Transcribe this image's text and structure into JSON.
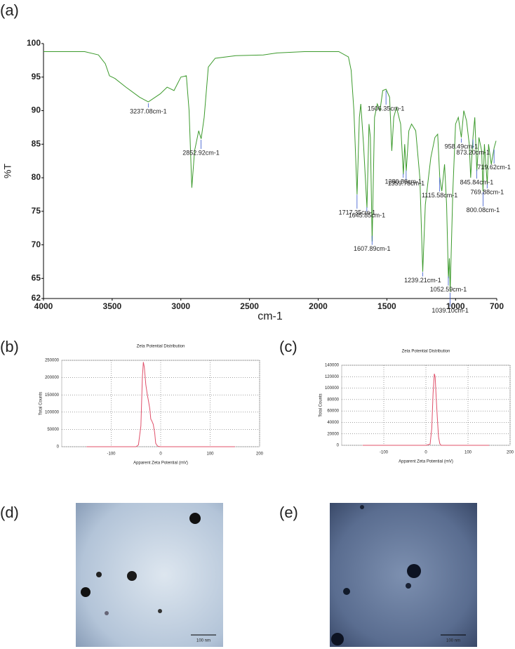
{
  "chart_data": [
    {
      "type": "line",
      "panel_label": "(a)",
      "xlabel": "cm-1",
      "ylabel": "%T",
      "color": "#3c9a2c",
      "xlim": [
        4000,
        700
      ],
      "ylim": [
        62,
        100
      ],
      "xticks": [
        4000,
        3500,
        3000,
        2500,
        2000,
        1500,
        1000,
        700
      ],
      "yticks": [
        62,
        65,
        70,
        75,
        80,
        85,
        90,
        95,
        100
      ],
      "grid": false,
      "x": [
        4000,
        3700,
        3600,
        3550,
        3520,
        3480,
        3400,
        3300,
        3237,
        3150,
        3100,
        3050,
        3000,
        2960,
        2940,
        2920,
        2900,
        2870,
        2852,
        2830,
        2800,
        2750,
        2600,
        2400,
        2300,
        2100,
        2000,
        1850,
        1780,
        1760,
        1740,
        1717,
        1700,
        1690,
        1670,
        1645,
        1630,
        1620,
        1607,
        1590,
        1570,
        1550,
        1530,
        1506,
        1480,
        1464,
        1450,
        1430,
        1400,
        1380,
        1370,
        1359,
        1340,
        1320,
        1290,
        1260,
        1239,
        1220,
        1180,
        1150,
        1130,
        1115,
        1100,
        1080,
        1065,
        1052,
        1045,
        1039,
        1020,
        1000,
        980,
        958,
        940,
        920,
        900,
        890,
        873,
        860,
        845,
        830,
        810,
        800,
        790,
        769,
        760,
        740,
        719,
        705
      ],
      "values": [
        98.8,
        98.8,
        98.3,
        97,
        95.2,
        94.8,
        93.5,
        92,
        91.3,
        92.5,
        93.5,
        93,
        95,
        95.2,
        90,
        78.5,
        84,
        87,
        85.8,
        89,
        96.5,
        97.8,
        98.2,
        98.3,
        98.6,
        98.8,
        98.8,
        98.8,
        98,
        96,
        90,
        77.5,
        89,
        91,
        85,
        75.5,
        88,
        86,
        70.5,
        89,
        91,
        90,
        93,
        93.2,
        92,
        84,
        89,
        90.5,
        88,
        80.5,
        85,
        81,
        87,
        88,
        87,
        80,
        66,
        76,
        83,
        86,
        86.5,
        80,
        78,
        82,
        76,
        65,
        68,
        63,
        78,
        88,
        89,
        86,
        90,
        88.5,
        85,
        80,
        86,
        89,
        81,
        86,
        84,
        78,
        85,
        79,
        85,
        82,
        84.5,
        85.5
      ],
      "annotations": [
        {
          "label": "3237.08cm-1",
          "x": 3237.08
        },
        {
          "label": "2852.92cm-1",
          "x": 2852.92
        },
        {
          "label": "1506.35cm-1",
          "x": 1506.35
        },
        {
          "label": "1380.88cm-1",
          "x": 1380.88
        },
        {
          "label": "1359.78cm-1",
          "x": 1359.78
        },
        {
          "label": "1717.35cm-1",
          "x": 1717.35
        },
        {
          "label": "1645.85cm-1",
          "x": 1645.85
        },
        {
          "label": "1607.89cm-1",
          "x": 1607.89
        },
        {
          "label": "1115.58cm-1",
          "x": 1115.58
        },
        {
          "label": "1239.21cm-1",
          "x": 1239.21
        },
        {
          "label": "1052.59cm-1",
          "x": 1052.59
        },
        {
          "label": "1039.10cm-1",
          "x": 1039.1
        },
        {
          "label": "958.49cm-1",
          "x": 958.49
        },
        {
          "label": "845.84cm-1",
          "x": 845.84
        },
        {
          "label": "719.62cm-1",
          "x": 719.62
        },
        {
          "label": "769.88cm-1",
          "x": 769.88
        },
        {
          "label": "873.20cm-1",
          "x": 873.2
        },
        {
          "label": "800.08cm-1",
          "x": 800.08
        }
      ]
    },
    {
      "type": "line",
      "panel_label": "(b)",
      "title": "Zeta Potential Distribution",
      "xlabel": "Apparent Zeta Potential (mV)",
      "ylabel": "Total Counts",
      "color": "#e0506a",
      "xlim": [
        -200,
        200
      ],
      "ylim": [
        0,
        250000
      ],
      "xticks": [
        -100,
        0,
        100,
        200
      ],
      "yticks": [
        0,
        50000,
        100000,
        150000,
        200000,
        250000
      ],
      "grid": true,
      "x": [
        -150,
        -50,
        -45,
        -40,
        -37,
        -35,
        -33,
        -30,
        -27,
        -25,
        -22,
        -20,
        -18,
        -15,
        -12,
        -10,
        -7,
        -5,
        0,
        150
      ],
      "values": [
        0,
        0,
        5000,
        60000,
        200000,
        245000,
        230000,
        180000,
        150000,
        135000,
        110000,
        80000,
        75000,
        65000,
        40000,
        10000,
        3000,
        1000,
        0,
        0
      ]
    },
    {
      "type": "line",
      "panel_label": "(c)",
      "title": "Zeta Potential Distribution",
      "xlabel": "Apparent Zeta Potential (mV)",
      "ylabel": "Total Counts",
      "color": "#e0506a",
      "xlim": [
        -200,
        200
      ],
      "ylim": [
        0,
        140000
      ],
      "xticks": [
        -100,
        0,
        100,
        200
      ],
      "yticks": [
        0,
        20000,
        40000,
        60000,
        80000,
        100000,
        120000,
        140000
      ],
      "grid": true,
      "x": [
        -150,
        0,
        10,
        14,
        17,
        20,
        22,
        24,
        27,
        30,
        33,
        36,
        40,
        150
      ],
      "values": [
        0,
        0,
        2000,
        30000,
        90000,
        125000,
        120000,
        90000,
        50000,
        15000,
        3000,
        0,
        0,
        0
      ]
    }
  ],
  "images": [
    {
      "panel_label": "(d)",
      "scale_bar": "100 nm"
    },
    {
      "panel_label": "(e)",
      "scale_bar": "100 nm"
    }
  ]
}
